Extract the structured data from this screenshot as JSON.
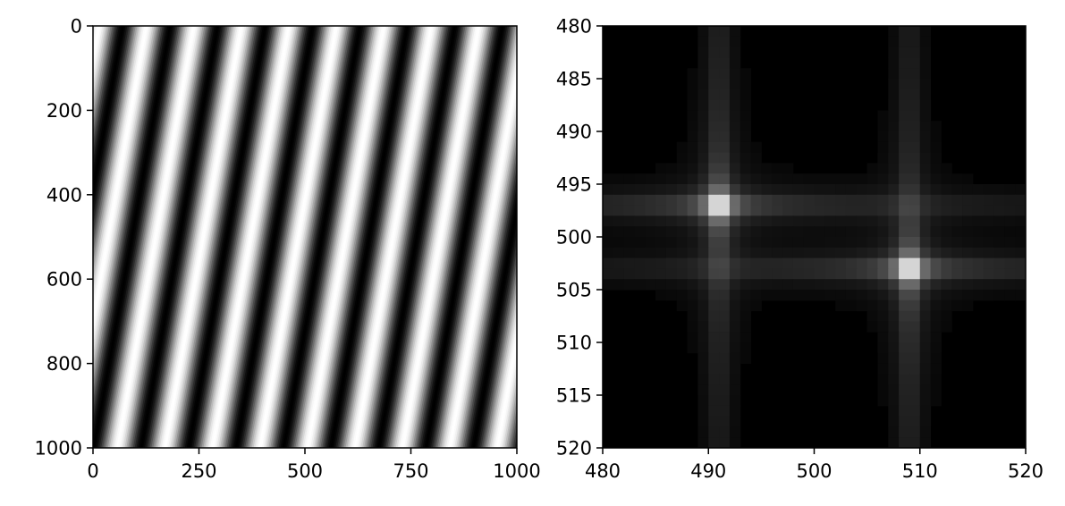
{
  "chart_data": [
    {
      "type": "heatmap",
      "title": "",
      "xlabel": "",
      "ylabel": "",
      "colormap": "gray",
      "xlim": [
        0,
        1000
      ],
      "ylim": [
        1000,
        0
      ],
      "y_inverted": true,
      "xticks": [
        0,
        250,
        500,
        750,
        1000
      ],
      "xtick_labels": [
        "0",
        "250",
        "500",
        "750",
        "1000"
      ],
      "yticks": [
        0,
        200,
        400,
        600,
        800,
        1000
      ],
      "ytick_labels": [
        "0",
        "200",
        "400",
        "600",
        "800",
        "1000"
      ],
      "pattern": {
        "kind": "sinusoidal grating",
        "period_x": 112,
        "y_over_x_shear": 0.18,
        "dark_stripe_at_x": 0
      }
    },
    {
      "type": "heatmap",
      "title": "",
      "xlabel": "",
      "ylabel": "",
      "colormap": "gray",
      "xlim": [
        480,
        520
      ],
      "ylim": [
        520,
        480
      ],
      "y_inverted": true,
      "xticks": [
        480,
        490,
        500,
        510,
        520
      ],
      "xtick_labels": [
        "480",
        "490",
        "500",
        "510",
        "520"
      ],
      "yticks": [
        480,
        485,
        490,
        495,
        500,
        505,
        510,
        515,
        520
      ],
      "ytick_labels": [
        "480",
        "485",
        "490",
        "495",
        "500",
        "505",
        "510",
        "515",
        "520"
      ],
      "peaks": [
        {
          "x": 491,
          "y": 497,
          "value": 1.0
        },
        {
          "x": 509,
          "y": 503,
          "value": 1.0
        }
      ]
    }
  ]
}
